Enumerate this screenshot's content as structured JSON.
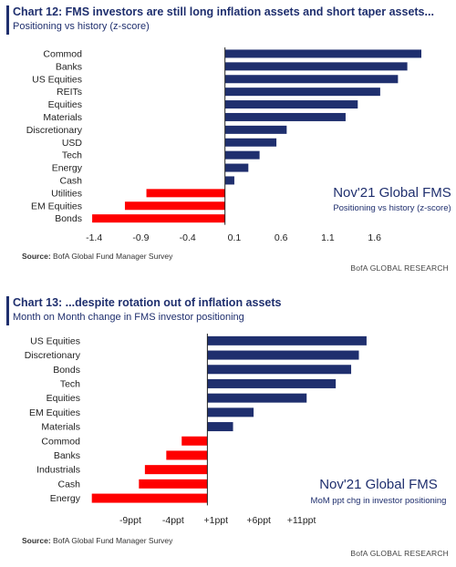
{
  "chart_data": [
    {
      "type": "bar",
      "orientation": "horizontal",
      "title": "Chart 12: FMS investors are still long inflation assets and short taper assets...",
      "subtitle": "Positioning vs history (z-score)",
      "annotation": "Nov'21 Global FMS",
      "annotation_sub": "Positioning vs history (z-score)",
      "categories": [
        "Commod",
        "Banks",
        "US Equities",
        "REITs",
        "Equities",
        "Materials",
        "Discretionary",
        "USD",
        "Tech",
        "Energy",
        "Cash",
        "Utilities",
        "EM Equities",
        "Bonds"
      ],
      "values": [
        2.1,
        1.95,
        1.85,
        1.66,
        1.42,
        1.29,
        0.66,
        0.55,
        0.37,
        0.25,
        0.1,
        -0.84,
        -1.07,
        -1.42
      ],
      "xlim": [
        -1.45,
        2.1
      ],
      "xticks": [
        -1.4,
        -0.9,
        -0.4,
        0.1,
        0.6,
        1.1,
        1.6
      ],
      "xticklabels": [
        "-1.4",
        "-0.9",
        "-0.4",
        "0.1",
        "0.6",
        "1.1",
        "1.6"
      ],
      "baseline": 0,
      "positive_color": "#1f2f6e",
      "negative_color": "#ff0000",
      "source": "BofA Global Fund Manager Survey",
      "brand": "BofA GLOBAL RESEARCH"
    },
    {
      "type": "bar",
      "orientation": "horizontal",
      "title": "Chart 13: ...despite rotation out of inflation assets",
      "subtitle": "Month on Month change in FMS investor positioning",
      "annotation": "Nov'21 Global FMS",
      "annotation_sub": "MoM ppt chg in investor positioning",
      "categories": [
        "US Equities",
        "Discretionary",
        "Bonds",
        "Tech",
        "Equities",
        "EM Equities",
        "Materials",
        "Commod",
        "Banks",
        "Industrials",
        "Cash",
        "Energy"
      ],
      "values": [
        18.6,
        17.7,
        16.8,
        15.0,
        11.6,
        5.4,
        3.0,
        -3.0,
        -4.8,
        -7.3,
        -8.0,
        -13.5
      ],
      "xlim": [
        -14,
        25
      ],
      "xticks": [
        -9,
        -4,
        1,
        6,
        11
      ],
      "xticklabels": [
        "-9ppt",
        "-4ppt",
        "+1ppt",
        "+6ppt",
        "+11ppt"
      ],
      "baseline": 0,
      "positive_color": "#1f2f6e",
      "negative_color": "#ff0000",
      "source": "BofA Global Fund Manager Survey",
      "brand": "BofA GLOBAL RESEARCH"
    }
  ],
  "labels": {
    "source_prefix": "Source:"
  }
}
